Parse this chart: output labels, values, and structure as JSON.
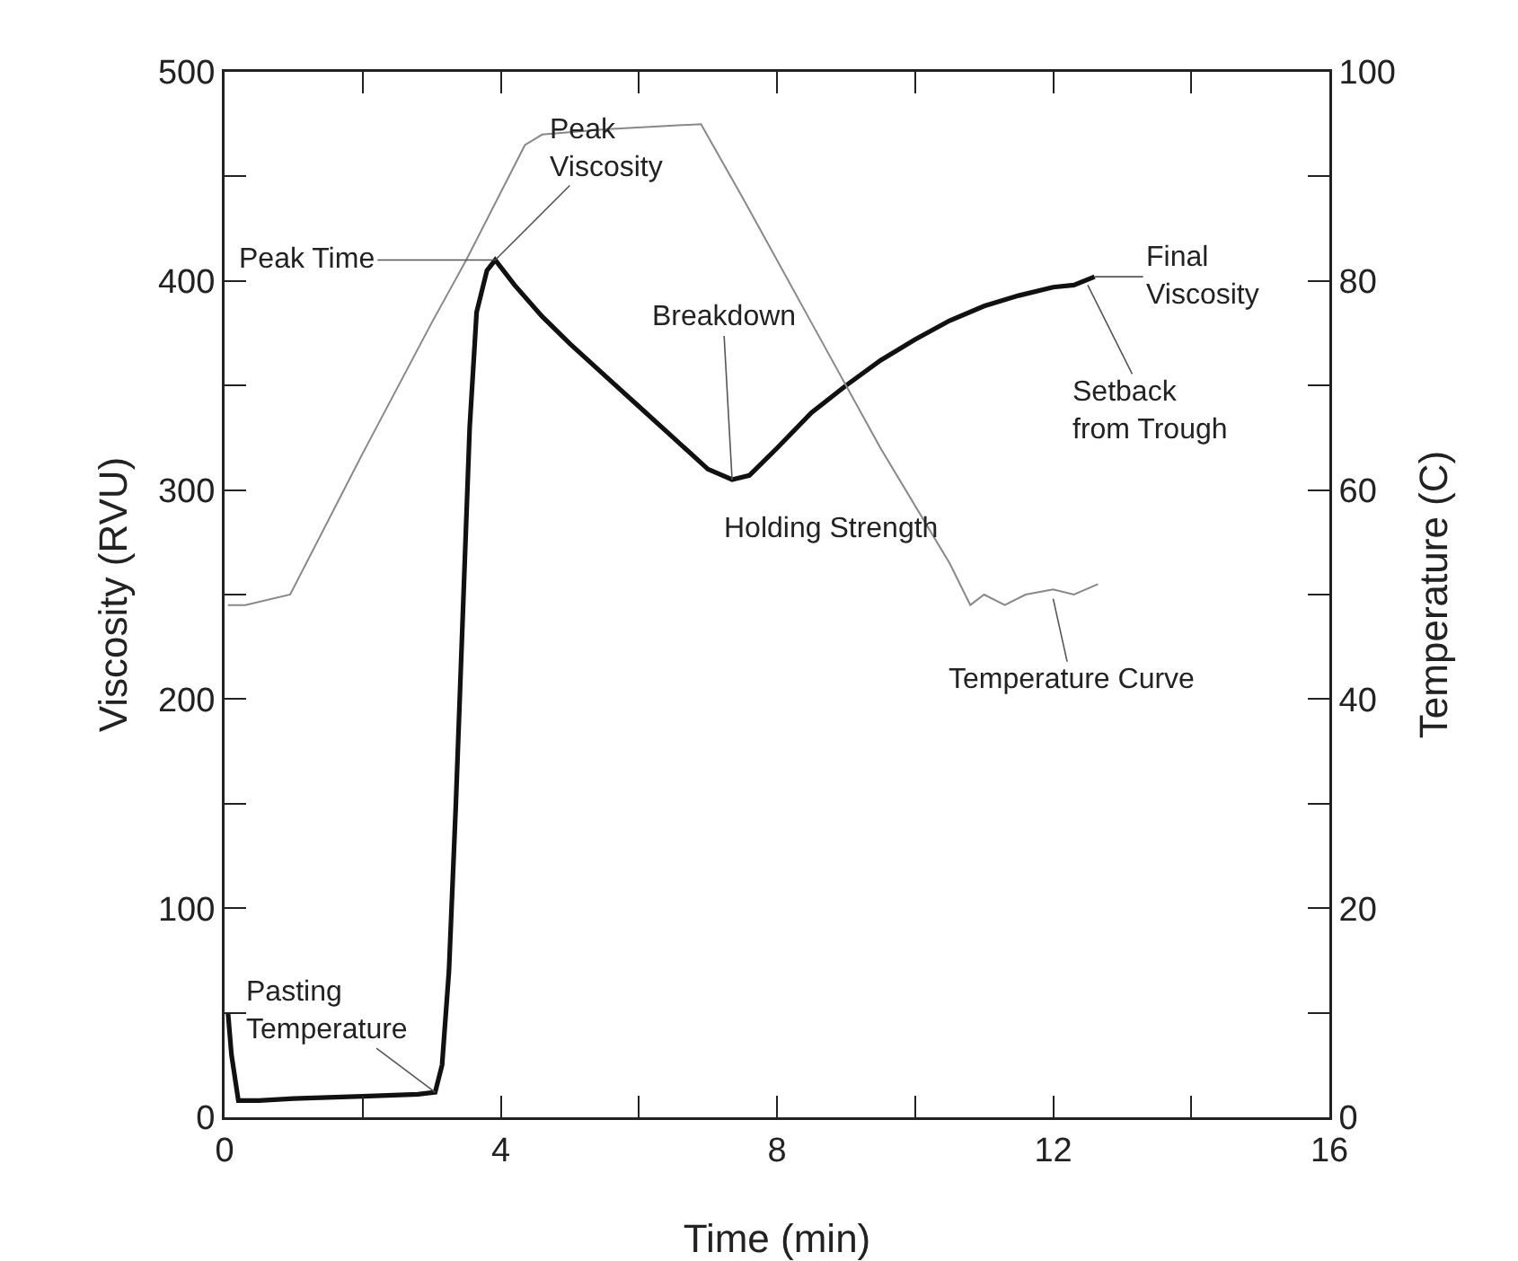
{
  "chart_data": {
    "type": "line",
    "xlabel": "Time (min)",
    "ylabel": "Viscosity (RVU)",
    "y2label": "Temperature (C)",
    "xlim": [
      0,
      16
    ],
    "xticks": [
      0,
      {
        "value": 2,
        "label": null
      },
      4,
      {
        "value": 6,
        "label": null
      },
      8,
      {
        "value": 10,
        "label": null
      },
      12,
      {
        "value": 14,
        "label": null
      },
      16
    ],
    "ylim": [
      0,
      500
    ],
    "yticks": [
      0,
      {
        "value": 50,
        "label": null
      },
      100,
      {
        "value": 150,
        "label": null
      },
      200,
      {
        "value": 250,
        "label": null
      },
      300,
      {
        "value": 350,
        "label": null
      },
      400,
      {
        "value": 450,
        "label": null
      },
      500
    ],
    "y2lim": [
      0,
      100
    ],
    "y2ticks": [
      0,
      {
        "value": 10,
        "label": null
      },
      20,
      {
        "value": 30,
        "label": null
      },
      40,
      {
        "value": 50,
        "label": null
      },
      60,
      {
        "value": 70,
        "label": null
      },
      80,
      {
        "value": 90,
        "label": null
      },
      100
    ],
    "marker": "none",
    "series": [
      {
        "color": "#111111",
        "x": [
          0.05,
          0.1,
          0.2,
          0.5,
          1,
          2,
          2.8,
          3.05,
          3.15,
          3.25,
          3.35,
          3.45,
          3.55,
          3.65,
          3.8,
          3.92,
          4.2,
          4.6,
          5,
          5.5,
          6,
          6.5,
          7,
          7.35,
          7.6,
          8,
          8.5,
          9,
          9.5,
          10,
          10.5,
          11,
          11.5,
          12,
          12.3,
          12.6
        ],
        "values": [
          50,
          30,
          8,
          8,
          9,
          10,
          11,
          12,
          25,
          70,
          150,
          240,
          330,
          385,
          405,
          410,
          398,
          383,
          370,
          355,
          340,
          325,
          310,
          305,
          307,
          320,
          337,
          350,
          362,
          372,
          381,
          388,
          393,
          397,
          398,
          402
        ]
      },
      {
        "color": "#888888",
        "axis": "y2",
        "x": [
          0.05,
          0.3,
          0.95,
          2,
          3,
          3.5,
          4.35,
          4.6,
          5.5,
          6.9,
          7.5,
          8.5,
          9.5,
          10.5,
          10.8,
          11,
          11.3,
          11.6,
          12,
          12.3,
          12.65
        ],
        "values": [
          49,
          49,
          50,
          63.5,
          76,
          82,
          93,
          94,
          94.5,
          95,
          88,
          76,
          64,
          53,
          49,
          50,
          49,
          50,
          50.5,
          50,
          51
        ]
      }
    ],
    "annotations": [
      {
        "text": "Peak Time",
        "x": 3.92,
        "y": 410
      },
      {
        "text": "Peak\nViscosity",
        "x": 3.92,
        "y": 410
      },
      {
        "text": "Breakdown",
        "x": 7.35,
        "y": 305
      },
      {
        "text": "Holding Strength",
        "x": 7.35,
        "y": 305
      },
      {
        "text": "Final\nViscosity",
        "x": 12.6,
        "y": 402
      },
      {
        "text": "Setback\nfrom Trough",
        "x": 12.5,
        "y": 398
      },
      {
        "text": "Temperature Curve",
        "x": 12,
        "y": 248
      },
      {
        "text": "Pasting\nTemperature",
        "x": 3.05,
        "y": 12
      }
    ]
  }
}
